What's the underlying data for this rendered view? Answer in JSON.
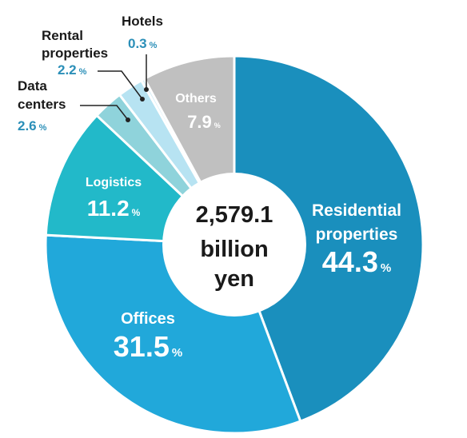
{
  "chart_data": {
    "type": "pie",
    "center_label": [
      "2,579.1",
      "billion",
      "yen"
    ],
    "unit": "%",
    "slices": [
      {
        "label": [
          "Residential",
          "properties"
        ],
        "value": 44.3,
        "display": "44.3",
        "color": "#1a8fbd"
      },
      {
        "label": [
          "Offices"
        ],
        "value": 31.5,
        "display": "31.5",
        "color": "#21a8da"
      },
      {
        "label": [
          "Logistics"
        ],
        "value": 11.2,
        "display": "11.2",
        "color": "#22b9c9"
      },
      {
        "label": [
          "Data",
          "centers"
        ],
        "value": 2.6,
        "display": "2.6",
        "color": "#8fd3db"
      },
      {
        "label": [
          "Rental",
          "properties"
        ],
        "value": 2.2,
        "display": "2.2",
        "color": "#b7e3f2"
      },
      {
        "label": [
          "Hotels"
        ],
        "value": 0.3,
        "display": "0.3",
        "color": "#d6eef8"
      },
      {
        "label": [
          "Others"
        ],
        "value": 7.9,
        "display": "7.9",
        "color": "#c0c0c0"
      }
    ]
  }
}
